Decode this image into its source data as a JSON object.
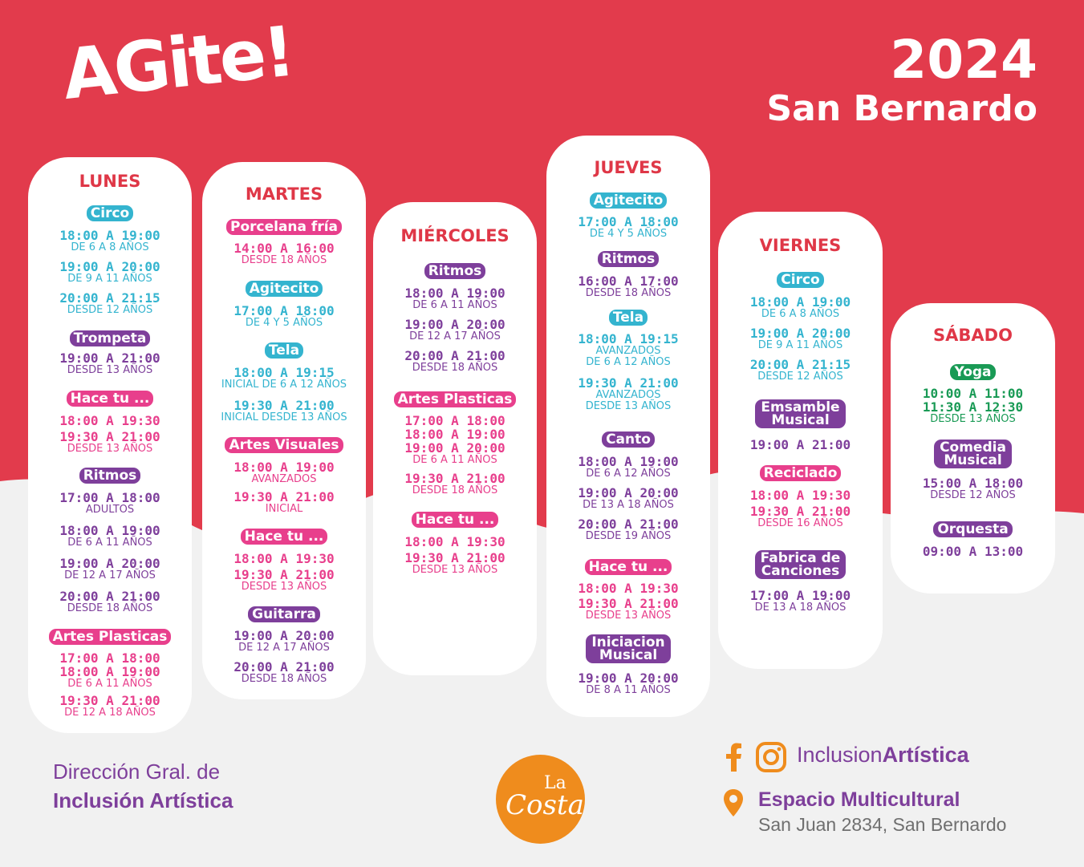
{
  "header": {
    "logo_text": "AGite!",
    "year": "2024",
    "city": "San Bernardo"
  },
  "days": {
    "lunes": {
      "title": "LUNES",
      "blocks": [
        {
          "activity": "Circo",
          "color": "#34b4cf",
          "entries": [
            {
              "time": "18:00 A 19:00",
              "detail": "DE 6 A 8 AÑOS"
            },
            {
              "time": "19:00 A 20:00",
              "detail": "DE 9 A 11 AÑOS"
            },
            {
              "time": "20:00 A 21:15",
              "detail": "DESDE 12 AÑOS"
            }
          ]
        },
        {
          "activity": "Trompeta",
          "color": "#7e3f9b",
          "entries": [
            {
              "time": "19:00 A 21:00",
              "detail": "DESDE 13 AÑOS"
            }
          ]
        },
        {
          "activity": "Hace tu ...",
          "color": "#e83f8c",
          "entries": [
            {
              "time": "18:00 A 19:30"
            },
            {
              "time": "19:30 A 21:00",
              "detail": "DESDE 13 AÑOS"
            }
          ]
        },
        {
          "activity": "Ritmos",
          "color": "#7e3f9b",
          "entries": [
            {
              "time": "17:00 A 18:00",
              "detail": "ADULTOS"
            },
            {
              "time": "18:00 A 19:00",
              "detail": "DE 6 A 11 AÑOS"
            },
            {
              "time": "19:00 A 20:00",
              "detail": "DE 12 A 17 AÑOS"
            },
            {
              "time": "20:00 A 21:00",
              "detail": "DESDE 18 AÑOS"
            }
          ]
        },
        {
          "activity": "Artes Plasticas",
          "color": "#e83f8c",
          "entries": [
            {
              "time": "17:00 A 18:00"
            },
            {
              "time": "18:00 A 19:00",
              "detail": "DE 6 A 11 AÑOS"
            },
            {
              "time": "19:30 A 21:00",
              "detail": "DE 12 A 18 AÑOS"
            }
          ]
        }
      ]
    },
    "martes": {
      "title": "MARTES",
      "blocks": [
        {
          "activity": "Porcelana fría",
          "color": "#e83f8c",
          "entries": [
            {
              "time": "14:00 A 16:00",
              "detail": "DESDE 18 AÑOS"
            }
          ]
        },
        {
          "activity": "Agitecito",
          "color": "#34b4cf",
          "entries": [
            {
              "time": "17:00 A 18:00",
              "detail": "DE 4 Y 5 AÑOS"
            }
          ]
        },
        {
          "activity": "Tela",
          "color": "#34b4cf",
          "entries": [
            {
              "time": "18:00 A 19:15",
              "detail": "INICIAL DE 6 A 12 AÑOS"
            },
            {
              "time": "19:30 A 21:00",
              "detail": "INICIAL DESDE 13 AÑOS"
            }
          ]
        },
        {
          "activity": "Artes Visuales",
          "color": "#e83f8c",
          "entries": [
            {
              "time": "18:00 A 19:00",
              "detail": "AVANZADOS"
            },
            {
              "time": "19:30 A 21:00",
              "detail": "INICIAL"
            }
          ]
        },
        {
          "activity": "Hace tu ...",
          "color": "#e83f8c",
          "entries": [
            {
              "time": "18:00 A 19:30"
            },
            {
              "time": "19:30 A 21:00",
              "detail": "DESDE 13 AÑOS"
            }
          ]
        },
        {
          "activity": "Guitarra",
          "color": "#7e3f9b",
          "entries": [
            {
              "time": "19:00 A 20:00",
              "detail": "DE 12 A 17 AÑOS"
            },
            {
              "time": "20:00 A 21:00",
              "detail": "DESDE 18 AÑOS"
            }
          ]
        }
      ]
    },
    "miercoles": {
      "title": "MIÉRCOLES",
      "blocks": [
        {
          "activity": "Ritmos",
          "color": "#7e3f9b",
          "entries": [
            {
              "time": "18:00 A 19:00",
              "detail": "DE 6 A 11 AÑOS"
            },
            {
              "time": "19:00 A 20:00",
              "detail": "DE 12 A 17 AÑOS"
            },
            {
              "time": "20:00 A 21:00",
              "detail": "DESDE 18 AÑOS"
            }
          ]
        },
        {
          "activity": "Artes Plasticas",
          "color": "#e83f8c",
          "entries": [
            {
              "time": "17:00 A 18:00"
            },
            {
              "time": "18:00 A 19:00"
            },
            {
              "time": "19:00 A 20:00",
              "detail": "DE 6 A 11 AÑOS"
            },
            {
              "time": "19:30 A 21:00",
              "detail": "DESDE 18 AÑOS"
            }
          ]
        },
        {
          "activity": "Hace tu ...",
          "color": "#e83f8c",
          "entries": [
            {
              "time": "18:00 A 19:30"
            },
            {
              "time": "19:30 A 21:00",
              "detail": "DESDE 13 AÑOS"
            }
          ]
        }
      ]
    },
    "jueves": {
      "title": "JUEVES",
      "blocks": [
        {
          "activity": "Agitecito",
          "color": "#34b4cf",
          "entries": [
            {
              "time": "17:00 A 18:00",
              "detail": "DE 4 Y 5 AÑOS"
            }
          ]
        },
        {
          "activity": "Ritmos",
          "color": "#7e3f9b",
          "entries": [
            {
              "time": "16:00 A 17:00",
              "detail": "DESDE 18 AÑOS"
            }
          ]
        },
        {
          "activity": "Tela",
          "color": "#34b4cf",
          "entries": [
            {
              "time": "18:00 A 19:15",
              "detail": "AVANZADOS",
              "detail2": "DE 6 A 12 AÑOS"
            },
            {
              "time": "19:30 A 21:00",
              "detail": "AVANZADOS",
              "detail2": "DESDE 13 AÑOS"
            }
          ]
        },
        {
          "activity": "Canto",
          "color": "#7e3f9b",
          "entries": [
            {
              "time": "18:00 A 19:00",
              "detail": "DE 6 A 12 AÑOS"
            },
            {
              "time": "19:00 A 20:00",
              "detail": "DE 13 A 18 AÑOS"
            },
            {
              "time": "20:00 A 21:00",
              "detail": "DESDE 19 AÑOS"
            }
          ]
        },
        {
          "activity": "Hace tu ...",
          "color": "#e83f8c",
          "entries": [
            {
              "time": "18:00 A 19:30"
            },
            {
              "time": "19:30 A 21:00",
              "detail": "DESDE 13 AÑOS"
            }
          ]
        },
        {
          "activity_line1": "Iniciacion",
          "activity_line2": "Musical",
          "color": "#7e3f9b",
          "entries": [
            {
              "time": "19:00 A 20:00",
              "detail": "DE 8 A 11 AÑOS"
            }
          ]
        }
      ]
    },
    "viernes": {
      "title": "VIERNES",
      "blocks": [
        {
          "activity": "Circo",
          "color": "#34b4cf",
          "entries": [
            {
              "time": "18:00 A 19:00",
              "detail": "DE 6 A 8 AÑOS"
            },
            {
              "time": "19:00 A 20:00",
              "detail": "DE 9 A 11 AÑOS"
            },
            {
              "time": "20:00 A 21:15",
              "detail": "DESDE 12 AÑOS"
            }
          ]
        },
        {
          "activity_line1": "Emsamble",
          "activity_line2": "Musical",
          "color": "#7e3f9b",
          "entries": [
            {
              "time": "19:00 A 21:00"
            }
          ]
        },
        {
          "activity": "Reciclado",
          "color": "#e83f8c",
          "entries": [
            {
              "time": "18:00 A 19:30"
            },
            {
              "time": "19:30 A 21:00",
              "detail": "DESDE 16 AÑOS"
            }
          ]
        },
        {
          "activity_line1": "Fabrica de",
          "activity_line2": "Canciones",
          "color": "#7e3f9b",
          "entries": [
            {
              "time": "17:00 A 19:00",
              "detail": "DE 13 A 18 AÑOS"
            }
          ]
        }
      ]
    },
    "sabado": {
      "title": "SÁBADO",
      "blocks": [
        {
          "activity": "Yoga",
          "color": "#199a55",
          "entries": [
            {
              "time": "10:00 A 11:00"
            },
            {
              "time": "11:30 A 12:30",
              "detail": "DESDE 13 AÑOS"
            }
          ]
        },
        {
          "activity_line1": "Comedia",
          "activity_line2": "Musical",
          "color": "#7e3f9b",
          "entries": [
            {
              "time": "15:00 A 18:00",
              "detail": "DESDE 12 AÑOS"
            }
          ]
        },
        {
          "activity": "Orquesta",
          "color": "#7e3f9b",
          "entries": [
            {
              "time": "09:00 A 13:00"
            }
          ]
        }
      ]
    }
  },
  "footer": {
    "org_line1": "Dirección Gral. de",
    "org_line2": "Inclusión Artística",
    "seal_text_top": "La",
    "seal_text_bottom": "Costa",
    "social_handle_plain": "Inclusion",
    "social_handle_bold": "Artística",
    "venue_name": "Espacio Multicultural",
    "venue_address": "San Juan 2834, San Bernardo"
  },
  "colors": {
    "red_band": "#e23b4c",
    "cyan": "#34b4cf",
    "pink": "#e83f8c",
    "purple": "#7e3f9b",
    "green": "#199a55",
    "orange": "#ef8c1d"
  }
}
